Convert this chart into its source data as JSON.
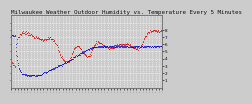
{
  "title": "Milwaukee Weather Outdoor Humidity vs. Temperature Every 5 Minutes",
  "bg_color": "#cccccc",
  "plot_bg_color": "#cccccc",
  "red_line_color": "#dd0000",
  "blue_line_color": "#0000cc",
  "grid_color": "#ffffff",
  "ylim": [
    0,
    100
  ],
  "right_yticks": [
    10,
    20,
    30,
    40,
    50,
    60,
    70,
    80
  ],
  "right_yticklabels": [
    "1",
    "2",
    "3",
    "4",
    "5",
    "6",
    "7",
    "8"
  ],
  "title_fontsize": 4.2,
  "tick_fontsize": 3.0,
  "n_points": 288,
  "red_y": [
    38,
    36,
    34,
    33,
    32,
    31,
    30,
    30,
    44,
    55,
    62,
    67,
    69,
    70,
    71,
    72,
    73,
    74,
    74,
    75,
    75,
    76,
    76,
    76,
    76,
    76,
    77,
    77,
    77,
    76,
    76,
    76,
    75,
    75,
    75,
    74,
    74,
    73,
    73,
    72,
    72,
    71,
    71,
    71,
    70,
    70,
    70,
    69,
    69,
    69,
    68,
    68,
    68,
    67,
    67,
    67,
    67,
    67,
    67,
    66,
    66,
    66,
    66,
    66,
    67,
    67,
    68,
    68,
    68,
    68,
    68,
    68,
    68,
    68,
    68,
    67,
    67,
    67,
    67,
    67,
    66,
    65,
    64,
    63,
    62,
    61,
    59,
    57,
    55,
    52,
    50,
    48,
    46,
    45,
    43,
    42,
    41,
    40,
    40,
    39,
    38,
    38,
    37,
    37,
    36,
    36,
    35,
    35,
    35,
    36,
    37,
    38,
    40,
    42,
    44,
    46,
    48,
    50,
    51,
    53,
    54,
    55,
    56,
    56,
    57,
    57,
    57,
    57,
    57,
    56,
    56,
    55,
    54,
    53,
    52,
    51,
    50,
    49,
    48,
    47,
    46,
    46,
    45,
    45,
    44,
    44,
    44,
    44,
    44,
    45,
    46,
    47,
    49,
    51,
    53,
    55,
    56,
    57,
    58,
    59,
    60,
    61,
    62,
    62,
    63,
    63,
    63,
    63,
    63,
    62,
    62,
    61,
    61,
    60,
    59,
    59,
    58,
    58,
    57,
    57,
    57,
    56,
    56,
    56,
    55,
    55,
    55,
    55,
    55,
    55,
    55,
    55,
    56,
    56,
    57,
    57,
    57,
    58,
    58,
    59,
    59,
    59,
    60,
    60,
    60,
    60,
    60,
    60,
    60,
    60,
    60,
    60,
    60,
    60,
    60,
    60,
    60,
    60,
    60,
    60,
    60,
    60,
    60,
    60,
    60,
    59,
    59,
    58,
    58,
    57,
    57,
    56,
    56,
    55,
    55,
    55,
    54,
    54,
    54,
    54,
    54,
    54,
    55,
    55,
    56,
    57,
    58,
    59,
    61,
    62,
    64,
    65,
    67,
    68,
    70,
    71,
    72,
    73,
    74,
    75,
    76,
    76,
    77,
    77,
    78,
    78,
    78,
    78,
    79,
    79,
    79,
    79,
    79,
    79,
    79,
    79,
    79,
    79,
    79,
    79,
    79,
    79,
    79,
    79,
    79,
    79,
    79,
    79
  ],
  "blue_y": [
    72,
    72,
    72,
    72,
    72,
    72,
    72,
    72,
    60,
    50,
    43,
    38,
    34,
    31,
    28,
    26,
    24,
    23,
    22,
    21,
    20,
    20,
    19,
    19,
    18,
    18,
    18,
    17,
    17,
    17,
    17,
    17,
    17,
    17,
    17,
    17,
    17,
    17,
    17,
    17,
    17,
    17,
    17,
    17,
    17,
    17,
    17,
    17,
    17,
    17,
    17,
    17,
    17,
    18,
    18,
    18,
    18,
    18,
    19,
    19,
    19,
    20,
    20,
    21,
    21,
    21,
    22,
    22,
    23,
    23,
    23,
    24,
    24,
    24,
    25,
    25,
    25,
    26,
    26,
    26,
    27,
    27,
    27,
    28,
    28,
    28,
    29,
    29,
    30,
    30,
    30,
    31,
    31,
    31,
    32,
    32,
    32,
    33,
    33,
    33,
    34,
    34,
    34,
    35,
    35,
    36,
    36,
    36,
    37,
    37,
    38,
    38,
    38,
    39,
    39,
    40,
    40,
    41,
    41,
    42,
    42,
    43,
    43,
    44,
    44,
    44,
    45,
    45,
    46,
    46,
    47,
    47,
    48,
    48,
    48,
    49,
    49,
    50,
    50,
    51,
    51,
    51,
    52,
    52,
    52,
    53,
    53,
    53,
    53,
    54,
    54,
    54,
    55,
    55,
    55,
    55,
    56,
    56,
    56,
    56,
    56,
    57,
    57,
    57,
    57,
    57,
    57,
    57,
    57,
    57,
    57,
    57,
    57,
    57,
    57,
    57,
    57,
    57,
    57,
    57,
    57,
    57,
    57,
    57,
    57,
    57,
    57,
    57,
    57,
    57,
    57,
    57,
    57,
    57,
    57,
    57,
    57,
    57,
    57,
    57,
    57,
    57,
    57,
    57,
    57,
    57,
    57,
    57,
    57,
    57,
    57,
    57,
    57,
    57,
    57,
    57,
    57,
    57,
    57,
    57,
    57,
    57,
    57,
    57,
    57,
    57,
    57,
    57,
    57,
    57,
    57,
    57,
    57,
    57,
    57,
    57,
    57,
    57,
    57,
    57,
    57,
    57,
    57,
    57,
    57,
    57,
    57,
    57,
    57,
    57,
    57,
    57,
    57,
    57,
    57,
    57,
    57,
    57,
    57,
    57,
    57,
    57,
    57,
    57,
    57,
    57,
    57,
    57,
    57,
    57,
    57,
    57,
    57,
    57,
    57,
    57,
    57,
    57,
    57,
    57,
    57,
    57,
    57,
    57,
    57,
    57,
    57,
    57
  ]
}
